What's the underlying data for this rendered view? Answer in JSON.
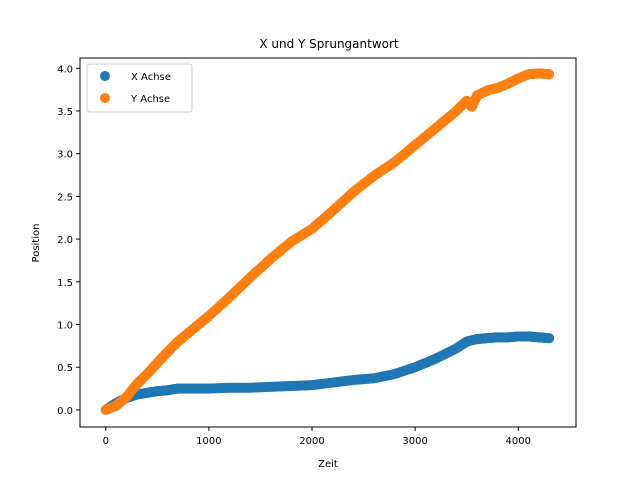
{
  "chart_data": {
    "type": "scatter",
    "title": "X und Y Sprungantwort",
    "xlabel": "Zeit",
    "ylabel": "Position",
    "xlim": [
      -250,
      4560
    ],
    "ylim": [
      -0.2,
      4.12
    ],
    "xticks": [
      0,
      1000,
      2000,
      3000,
      4000
    ],
    "yticks": [
      0.0,
      0.5,
      1.0,
      1.5,
      2.0,
      2.5,
      3.0,
      3.5,
      4.0
    ],
    "xtick_labels": [
      "0",
      "1000",
      "2000",
      "3000",
      "4000"
    ],
    "ytick_labels": [
      "0.0",
      "0.5",
      "1.0",
      "1.5",
      "2.0",
      "2.5",
      "3.0",
      "3.5",
      "4.0"
    ],
    "grid": false,
    "legend": "top-left",
    "series": [
      {
        "name": "X Achse",
        "color": "#1f77b4",
        "x": [
          0,
          100,
          200,
          300,
          400,
          500,
          600,
          700,
          800,
          900,
          1000,
          1200,
          1400,
          1600,
          1800,
          2000,
          2200,
          2400,
          2600,
          2800,
          3000,
          3200,
          3400,
          3500,
          3600,
          3700,
          3800,
          3900,
          4000,
          4100,
          4200,
          4300
        ],
        "y": [
          0.0,
          0.08,
          0.14,
          0.18,
          0.2,
          0.22,
          0.23,
          0.25,
          0.25,
          0.25,
          0.25,
          0.26,
          0.26,
          0.27,
          0.28,
          0.29,
          0.32,
          0.35,
          0.37,
          0.42,
          0.5,
          0.6,
          0.72,
          0.8,
          0.83,
          0.84,
          0.85,
          0.85,
          0.86,
          0.86,
          0.85,
          0.84
        ]
      },
      {
        "name": "Y Achse",
        "color": "#ff7f0e",
        "x": [
          0,
          100,
          200,
          300,
          400,
          500,
          600,
          700,
          800,
          900,
          1000,
          1200,
          1400,
          1600,
          1800,
          2000,
          2200,
          2400,
          2600,
          2800,
          3000,
          3200,
          3400,
          3500,
          3550,
          3600,
          3700,
          3800,
          3900,
          4000,
          4100,
          4200,
          4300
        ],
        "y": [
          0.0,
          0.05,
          0.15,
          0.3,
          0.42,
          0.55,
          0.68,
          0.8,
          0.9,
          1.0,
          1.1,
          1.32,
          1.55,
          1.77,
          1.97,
          2.12,
          2.33,
          2.55,
          2.74,
          2.9,
          3.1,
          3.3,
          3.5,
          3.62,
          3.55,
          3.68,
          3.74,
          3.77,
          3.82,
          3.88,
          3.93,
          3.94,
          3.93
        ]
      }
    ]
  }
}
